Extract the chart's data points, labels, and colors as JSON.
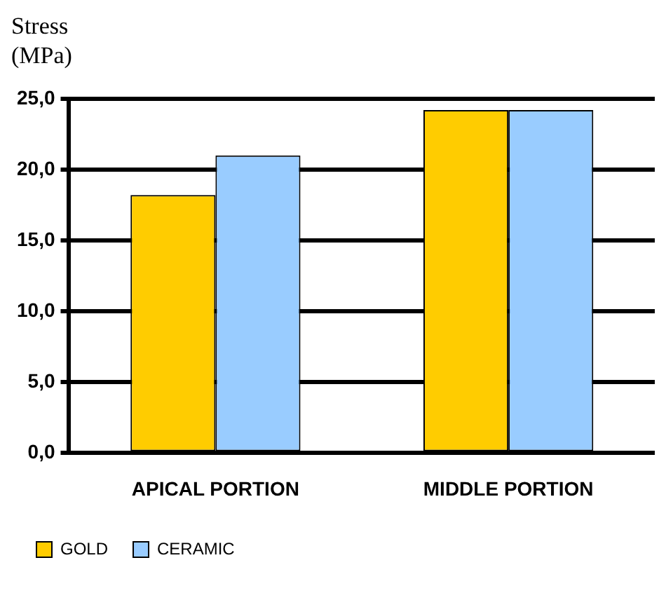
{
  "chart_data": {
    "type": "bar",
    "ylabel": "Stress (MPa)",
    "categories": [
      "APICAL PORTION",
      "MIDDLE PORTION"
    ],
    "series": [
      {
        "name": "GOLD",
        "color": "#ffcc00",
        "values": [
          18.2,
          24.2
        ]
      },
      {
        "name": "CERAMIC",
        "color": "#99ccff",
        "values": [
          21.0,
          24.2
        ]
      }
    ],
    "ylim": [
      0,
      25
    ],
    "yticks": [
      {
        "value": 0,
        "label": "0,0"
      },
      {
        "value": 5,
        "label": "5,0"
      },
      {
        "value": 10,
        "label": "10,0"
      },
      {
        "value": 15,
        "label": "15,0"
      },
      {
        "value": 20,
        "label": "20,0"
      },
      {
        "value": 25,
        "label": "25,0"
      }
    ],
    "grid": "y",
    "legend": "bottom"
  }
}
